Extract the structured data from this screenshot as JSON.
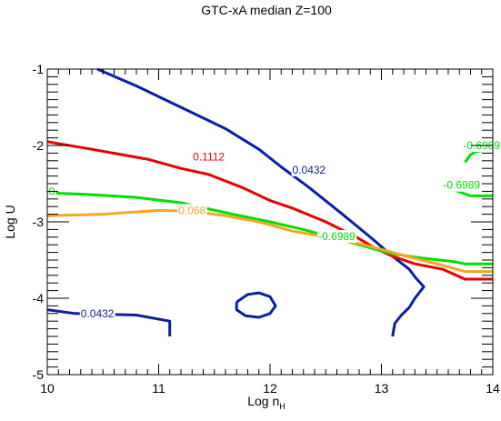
{
  "chart_data": {
    "type": "line",
    "title": "GTC-xA median Z=100",
    "xlabel": "Log n",
    "xlabel_sub": "H",
    "ylabel": "Log U",
    "xlim": [
      10,
      14
    ],
    "ylim": [
      -5,
      -1
    ],
    "x_ticks": [
      "10",
      "11",
      "12",
      "13",
      "14"
    ],
    "y_ticks": [
      "-1",
      "-2",
      "-3",
      "-4",
      "-5"
    ],
    "grid": false,
    "legend": "none",
    "series": [
      {
        "color": "#0a1fa8",
        "points": [
          [
            10.45,
            -1.0
          ],
          [
            10.8,
            -1.22
          ],
          [
            11.2,
            -1.5
          ],
          [
            11.6,
            -1.78
          ],
          [
            11.9,
            -2.05
          ],
          [
            12.1,
            -2.28
          ],
          [
            12.35,
            -2.55
          ],
          [
            12.65,
            -2.9
          ],
          [
            12.9,
            -3.2
          ],
          [
            13.1,
            -3.45
          ],
          [
            13.25,
            -3.62
          ],
          [
            13.3,
            -3.72
          ],
          [
            13.38,
            -3.85
          ],
          [
            13.3,
            -4.0
          ],
          [
            13.25,
            -4.12
          ],
          [
            13.18,
            -4.22
          ],
          [
            13.12,
            -4.33
          ],
          [
            13.1,
            -4.5
          ]
        ]
      },
      {
        "color": "#0a1fa8",
        "points": [
          [
            10.0,
            -4.15
          ],
          [
            10.25,
            -4.2
          ],
          [
            10.8,
            -4.22
          ],
          [
            11.1,
            -4.3
          ],
          [
            11.1,
            -4.5
          ]
        ]
      },
      {
        "color": "#0a1fa8",
        "points": [
          [
            11.7,
            -4.05
          ],
          [
            11.8,
            -3.95
          ],
          [
            11.9,
            -3.93
          ],
          [
            12.0,
            -3.98
          ],
          [
            12.05,
            -4.1
          ],
          [
            12.0,
            -4.2
          ],
          [
            11.9,
            -4.25
          ],
          [
            11.78,
            -4.23
          ],
          [
            11.7,
            -4.15
          ],
          [
            11.7,
            -4.05
          ]
        ]
      },
      {
        "color": "#e80000",
        "points": [
          [
            10.0,
            -1.95
          ],
          [
            10.4,
            -2.05
          ],
          [
            10.9,
            -2.18
          ],
          [
            11.2,
            -2.3
          ],
          [
            11.45,
            -2.38
          ],
          [
            11.75,
            -2.55
          ],
          [
            12.0,
            -2.72
          ],
          [
            12.2,
            -2.82
          ],
          [
            12.5,
            -3.0
          ],
          [
            12.75,
            -3.18
          ],
          [
            12.95,
            -3.35
          ],
          [
            13.1,
            -3.45
          ],
          [
            13.3,
            -3.55
          ],
          [
            13.55,
            -3.62
          ],
          [
            13.75,
            -3.75
          ],
          [
            14.0,
            -3.75
          ]
        ]
      },
      {
        "color": "#00e000",
        "points": [
          [
            10.0,
            -2.62
          ],
          [
            10.35,
            -2.64
          ],
          [
            10.8,
            -2.68
          ],
          [
            11.2,
            -2.75
          ],
          [
            11.6,
            -2.88
          ],
          [
            12.0,
            -3.0
          ],
          [
            12.3,
            -3.1
          ],
          [
            12.5,
            -3.18
          ],
          [
            12.8,
            -3.3
          ],
          [
            13.1,
            -3.42
          ],
          [
            13.4,
            -3.48
          ],
          [
            13.65,
            -3.52
          ],
          [
            13.75,
            -3.55
          ],
          [
            14.0,
            -3.55
          ]
        ]
      },
      {
        "color": "#00e000",
        "points": [
          [
            13.75,
            -2.22
          ],
          [
            13.8,
            -2.12
          ],
          [
            13.85,
            -2.08
          ],
          [
            13.95,
            -2.06
          ],
          [
            14.0,
            -2.06
          ]
        ]
      },
      {
        "color": "#00e000",
        "points": [
          [
            13.65,
            -2.58
          ],
          [
            13.8,
            -2.66
          ],
          [
            14.0,
            -2.66
          ]
        ]
      },
      {
        "color": "#f5a623",
        "points": [
          [
            10.0,
            -2.92
          ],
          [
            10.5,
            -2.9
          ],
          [
            11.0,
            -2.85
          ],
          [
            11.3,
            -2.86
          ],
          [
            11.6,
            -2.92
          ],
          [
            11.9,
            -3.0
          ],
          [
            12.2,
            -3.12
          ],
          [
            12.6,
            -3.22
          ],
          [
            12.9,
            -3.32
          ],
          [
            13.2,
            -3.44
          ],
          [
            13.5,
            -3.55
          ],
          [
            13.75,
            -3.65
          ],
          [
            14.0,
            -3.65
          ]
        ]
      }
    ],
    "annotations": [
      {
        "text": "0.0432",
        "x": 12.35,
        "y": -2.32,
        "color": "#0a1fa8"
      },
      {
        "text": "0.0432",
        "x": 10.45,
        "y": -4.2,
        "color": "#0a1fa8"
      },
      {
        "text": "0.1112",
        "x": 11.45,
        "y": -2.15,
        "color": "#e80000"
      },
      {
        "text": "0.068",
        "x": 11.3,
        "y": -2.85,
        "color": "#f5a623"
      },
      {
        "text": "-0.6989",
        "x": 12.6,
        "y": -3.19,
        "color": "#00e000"
      },
      {
        "text": "-0.6989",
        "x": 13.9,
        "y": -2.0,
        "color": "#00e000"
      },
      {
        "text": "-0.6989",
        "x": 13.72,
        "y": -2.52,
        "color": "#00e000"
      },
      {
        "text": "0",
        "x": 10.04,
        "y": -2.6,
        "color": "#00e000"
      }
    ]
  }
}
